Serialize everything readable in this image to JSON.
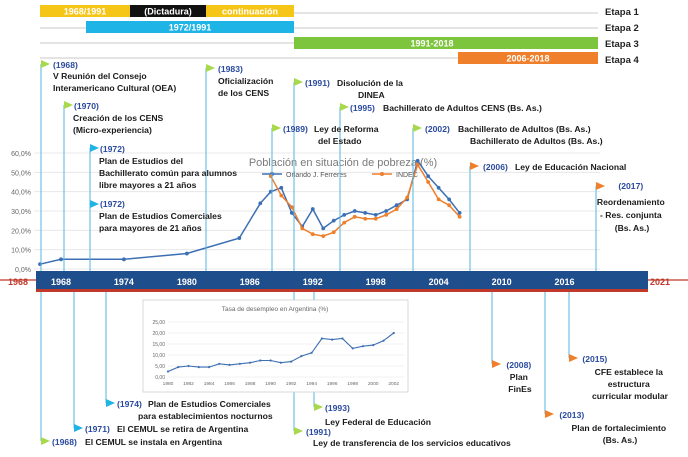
{
  "etapas": [
    {
      "label": "Etapa 1",
      "bars": [
        {
          "text": "1968/1991",
          "color": "#f5c518",
          "text_color": "#ffffff"
        },
        {
          "text": "(Dictadura)",
          "color": "#111111",
          "text_color": "#ffffff"
        },
        {
          "text": "continuación",
          "color": "#f5c518",
          "text_color": "#ffffff"
        }
      ]
    },
    {
      "label": "Etapa 2",
      "bars": [
        {
          "text": "1972/1991",
          "color": "#1fb4e6",
          "text_color": "#ffffff"
        }
      ]
    },
    {
      "label": "Etapa 3",
      "bars": [
        {
          "text": "1991-2018",
          "color": "#7dc53c",
          "text_color": "#ffffff"
        }
      ]
    },
    {
      "label": "Etapa 4",
      "bars": [
        {
          "text": "2006-2018",
          "color": "#ef7f2a",
          "text_color": "#ffffff"
        }
      ]
    }
  ],
  "timeline": {
    "start": "1968",
    "end": "2021",
    "ticks": [
      "1968",
      "1974",
      "1980",
      "1986",
      "1992",
      "1998",
      "2004",
      "2010",
      "2016"
    ],
    "bar_color": "#1f4e8c",
    "accent_color": "#c0392b"
  },
  "chart_data": [
    {
      "type": "line",
      "title": "Población en situación de pobreza (%)",
      "y_ticks": [
        "0,0%",
        "10,0%",
        "20,0%",
        "30,0%",
        "40,0%",
        "50,0%",
        "60,0%"
      ],
      "ylim": [
        0,
        60
      ],
      "xlim": [
        1968,
        2021
      ],
      "legend_position": "top-right",
      "series": [
        {
          "name": "Orlando J. Ferreres",
          "color": "#3d6fb4",
          "points": [
            [
              1966,
              2.5
            ],
            [
              1968,
              5
            ],
            [
              1974,
              5
            ],
            [
              1980,
              8
            ],
            [
              1985,
              16
            ],
            [
              1987,
              34
            ],
            [
              1988,
              40
            ],
            [
              1989,
              42
            ],
            [
              1990,
              29
            ],
            [
              1991,
              22
            ],
            [
              1992,
              31
            ],
            [
              1993,
              21
            ],
            [
              1994,
              25
            ],
            [
              1995,
              28
            ],
            [
              1996,
              30
            ],
            [
              1997,
              29
            ],
            [
              1998,
              28
            ],
            [
              1999,
              30
            ],
            [
              2000,
              33
            ],
            [
              2001,
              36
            ],
            [
              2002,
              56
            ],
            [
              2003,
              48
            ],
            [
              2004,
              42
            ],
            [
              2005,
              36
            ],
            [
              2006,
              29
            ]
          ]
        },
        {
          "name": "INDEC",
          "color": "#ef7f2a",
          "points": [
            [
              1988,
              48
            ],
            [
              1989,
              38
            ],
            [
              1990,
              32
            ],
            [
              1991,
              21
            ],
            [
              1992,
              18
            ],
            [
              1993,
              17
            ],
            [
              1994,
              19
            ],
            [
              1995,
              24
            ],
            [
              1996,
              27
            ],
            [
              1997,
              26
            ],
            [
              1998,
              26
            ],
            [
              1999,
              28
            ],
            [
              2000,
              31
            ],
            [
              2001,
              37
            ],
            [
              2002,
              54
            ],
            [
              2003,
              45
            ],
            [
              2004,
              36
            ],
            [
              2005,
              33
            ],
            [
              2006,
              27
            ]
          ]
        }
      ]
    },
    {
      "type": "line",
      "title": "Tasa de desempleo en Argentina (%)",
      "y_ticks": [
        "0,00",
        "5,00",
        "10,00",
        "15,00",
        "20,00",
        "25,00"
      ],
      "x_ticks": [
        "1980",
        "1982",
        "1984",
        "1986",
        "1988",
        "1990",
        "1992",
        "1994",
        "1996",
        "1998",
        "2000",
        "2002"
      ],
      "ylim": [
        0,
        25
      ],
      "xlim": [
        1980,
        2003
      ],
      "series": [
        {
          "color": "#3d6fb4",
          "points": [
            [
              1980,
              2.5
            ],
            [
              1981,
              4.5
            ],
            [
              1982,
              5
            ],
            [
              1983,
              4.5
            ],
            [
              1984,
              4.5
            ],
            [
              1985,
              6
            ],
            [
              1986,
              5.5
            ],
            [
              1987,
              6
            ],
            [
              1988,
              6.5
            ],
            [
              1989,
              7.5
            ],
            [
              1990,
              7.5
            ],
            [
              1991,
              6.5
            ],
            [
              1992,
              7
            ],
            [
              1993,
              9.5
            ],
            [
              1994,
              11
            ],
            [
              1995,
              17.5
            ],
            [
              1996,
              17
            ],
            [
              1997,
              17.5
            ],
            [
              1998,
              13
            ],
            [
              1999,
              14
            ],
            [
              2000,
              14.5
            ],
            [
              2001,
              16.5
            ],
            [
              2002,
              20
            ]
          ]
        }
      ]
    }
  ],
  "events_above": [
    {
      "year": "(1968)",
      "lines": [
        "V Reunión del Consejo",
        "Interamericano Cultural  (OEA)"
      ],
      "flag": "#a8d84c"
    },
    {
      "year": "(1970)",
      "lines": [
        "Creación de los CENS",
        "(Micro-experiencia)"
      ],
      "flag": "#a8d84c"
    },
    {
      "year": "(1972)",
      "lines": [
        "Plan de Estudios del",
        "Bachillerato común para alumnos",
        "libre mayores a 21 años"
      ],
      "flag": "#1fb4e6"
    },
    {
      "year": "(1972)",
      "lines": [
        "Plan de Estudios Comerciales",
        "para mayores de 21 años"
      ],
      "flag": "#1fb4e6"
    },
    {
      "year": "(1983)",
      "lines": [
        "Oficialización",
        "de los CENS"
      ],
      "flag": "#a8d84c"
    },
    {
      "year": "(1989)",
      "lines": [
        "Ley de Reforma",
        "del Estado"
      ],
      "flag": "#a8d84c"
    },
    {
      "year": "(1991)",
      "lines": [
        "Disolución de la",
        "DINEA"
      ],
      "flag": "#a8d84c"
    },
    {
      "year": "(1995)",
      "lines": [
        "Bachillerato de Adultos CENS (Bs. As.)"
      ],
      "flag": "#a8d84c"
    },
    {
      "year": "(2002)",
      "lines": [
        "Bachillerato de Adultos (Bs. As.)",
        "Bachillerato de Adultos (Bs. As.)"
      ],
      "flag": "#a8d84c"
    },
    {
      "year": "(2006)",
      "lines": [
        "Ley de Educación Nacional"
      ],
      "flag": "#ef7f2a"
    },
    {
      "year": "(2017)",
      "lines": [
        "Reordenamiento",
        "- Res. conjunta",
        "(Bs. As.)"
      ],
      "flag": "#ef7f2a"
    }
  ],
  "events_below": [
    {
      "year": "(2008)",
      "lines": [
        "Plan",
        "FinEs"
      ],
      "flag": "#ef7f2a"
    },
    {
      "year": "(2015)",
      "lines": [
        "CFE establece la",
        "estructura",
        "curricular modular"
      ],
      "flag": "#ef7f2a"
    },
    {
      "year": "(2013)",
      "lines": [
        "Plan de fortalecimiento",
        "(Bs. As.)"
      ],
      "flag": "#ef7f2a"
    },
    {
      "year": "(1974)",
      "lines": [
        "Plan de Estudios Comerciales",
        "para establecimientos nocturnos"
      ],
      "flag": "#1fb4e6"
    },
    {
      "year": "(1993)",
      "lines": [
        "Ley Federal de Educación"
      ],
      "flag": "#a8d84c"
    },
    {
      "year": "(1971)",
      "lines": [
        "El CEMUL se retira de Argentina"
      ],
      "flag": "#1fb4e6"
    },
    {
      "year": "(1991)",
      "lines": [
        "Ley de transferencia de los servicios educativos"
      ],
      "flag": "#a8d84c"
    },
    {
      "year": "(1968)",
      "lines": [
        "El CEMUL se instala en Argentina"
      ],
      "flag": "#a8d84c"
    }
  ]
}
